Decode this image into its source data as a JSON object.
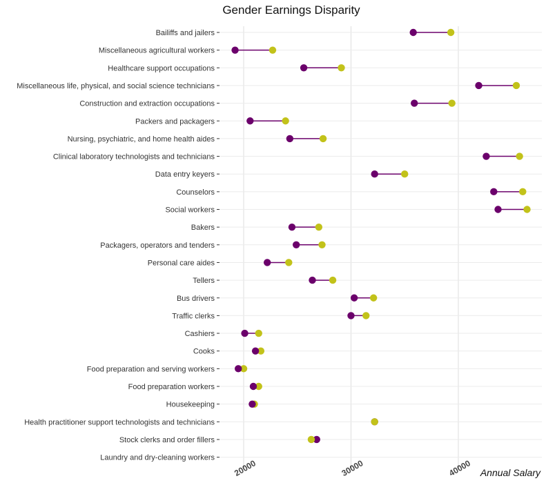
{
  "chart_data": {
    "type": "dumbbell",
    "title": "Gender Earnings Disparity",
    "xlabel": "Annual Salary",
    "xlim": [
      16000,
      47500
    ],
    "xticks": [
      20000,
      30000,
      40000
    ],
    "grid": true,
    "legend": "none",
    "colors": {
      "series_a": "#6b006b",
      "series_b": "#c2c21a",
      "segment": "#6b006b"
    },
    "categories": [
      "Bailiffs and jailers",
      "Miscellaneous agricultural workers",
      "Healthcare support occupations",
      "Miscellaneous life, physical, and social science technicians",
      "Construction and extraction occupations",
      "Packers and packagers",
      "Nursing, psychiatric, and home health aides",
      "Clinical laboratory technologists and technicians",
      "Data entry keyers",
      "Counselors",
      "Social workers",
      "Bakers",
      "Packagers, operators and tenders",
      "Personal care aides",
      "Tellers",
      "Bus drivers",
      "Traffic clerks",
      "Cashiers",
      "Cooks",
      "Food preparation and serving workers",
      "Food preparation workers",
      "Housekeeping",
      "Health practitioner support technologists and technicians",
      "Stock clerks and order fillers",
      "Laundry and dry-cleaning workers"
    ],
    "series": [
      {
        "values": [
          35800,
          19200,
          25600,
          41900,
          35900,
          20600,
          24300,
          42600,
          32200,
          43300,
          43700,
          24500,
          24900,
          22200,
          26400,
          30300,
          30000,
          20100,
          21100,
          19500,
          20900,
          20800,
          32200,
          26800,
          null
        ]
      },
      {
        "values": [
          39300,
          22700,
          29100,
          45400,
          39400,
          23900,
          27400,
          45700,
          35000,
          46000,
          46400,
          27000,
          27300,
          24200,
          28300,
          32100,
          31400,
          21400,
          21600,
          20000,
          21400,
          21000,
          32200,
          26300,
          null
        ]
      }
    ]
  }
}
